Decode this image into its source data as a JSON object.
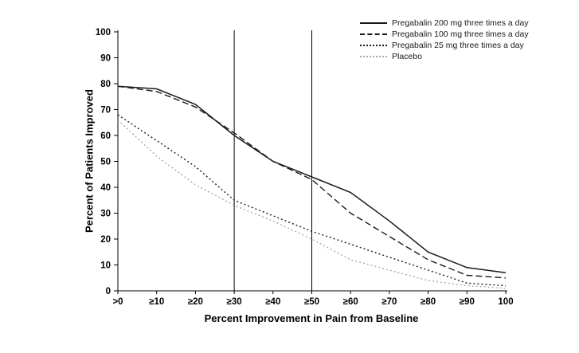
{
  "chart_data": {
    "type": "line",
    "title": "",
    "xlabel": "Percent Improvement in Pain from Baseline",
    "ylabel": "Percent of Patients Improved",
    "x": [
      0,
      10,
      20,
      30,
      40,
      50,
      60,
      70,
      80,
      90,
      100
    ],
    "x_tick_labels": [
      ">0",
      "≥10",
      "≥20",
      "≥30",
      "≥40",
      "≥50",
      "≥60",
      "≥70",
      "≥80",
      "≥90",
      "100"
    ],
    "y_ticks": [
      0,
      10,
      20,
      30,
      40,
      50,
      60,
      70,
      80,
      90,
      100
    ],
    "ylim": [
      0,
      100
    ],
    "xlim": [
      0,
      100
    ],
    "grid": false,
    "legend_position": "top-right",
    "reference_lines_x": [
      30,
      50
    ],
    "axis_color": "#000000",
    "series": [
      {
        "name": "Pregabalin 200 mg three times a day",
        "style": "solid",
        "color": "#1a1a1a",
        "values": [
          79,
          78,
          72,
          60,
          50,
          44,
          38,
          27,
          15,
          9,
          7
        ]
      },
      {
        "name": "Pregabalin 100 mg three times a day",
        "style": "dashed",
        "color": "#1a1a1a",
        "values": [
          79,
          77,
          71,
          61,
          50,
          43,
          30,
          21,
          12,
          6,
          5
        ]
      },
      {
        "name": "Pregabalin 25 mg three times a day",
        "style": "dotted",
        "color": "#1a1a1a",
        "values": [
          68,
          58,
          48,
          35,
          29,
          23,
          18,
          13,
          8,
          3,
          2
        ]
      },
      {
        "name": "Placebo",
        "style": "dotted",
        "color": "#aaaaaa",
        "values": [
          66,
          52,
          41,
          33,
          27,
          20,
          12,
          8,
          4,
          2,
          1
        ]
      }
    ]
  }
}
